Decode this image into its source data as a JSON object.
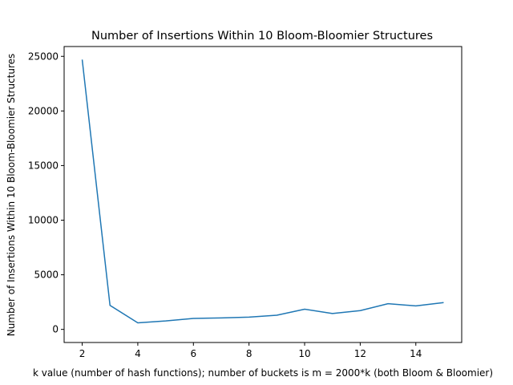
{
  "chart_data": {
    "type": "line",
    "title": "Number of Insertions Within 10 Bloom-Bloomier Structures",
    "xlabel": "k value (number of hash functions); number of buckets is m = 2000*k (both Bloom & Bloomier)",
    "ylabel": "Number of Insertions Within 10 Bloom-Bloomier Structures",
    "xlim": [
      1.35,
      15.65
    ],
    "ylim": [
      -1200,
      25900
    ],
    "xticks": [
      2,
      4,
      6,
      8,
      10,
      12,
      14
    ],
    "yticks": [
      0,
      5000,
      10000,
      15000,
      20000,
      25000
    ],
    "grid": false,
    "series": [
      {
        "color": "#1f77b4",
        "x": [
          2,
          3,
          4,
          5,
          6,
          7,
          8,
          9,
          10,
          11,
          12,
          13,
          14,
          15
        ],
        "y": [
          24700,
          2200,
          600,
          770,
          1000,
          1050,
          1120,
          1300,
          1850,
          1450,
          1720,
          2350,
          2150,
          2450
        ]
      }
    ]
  }
}
